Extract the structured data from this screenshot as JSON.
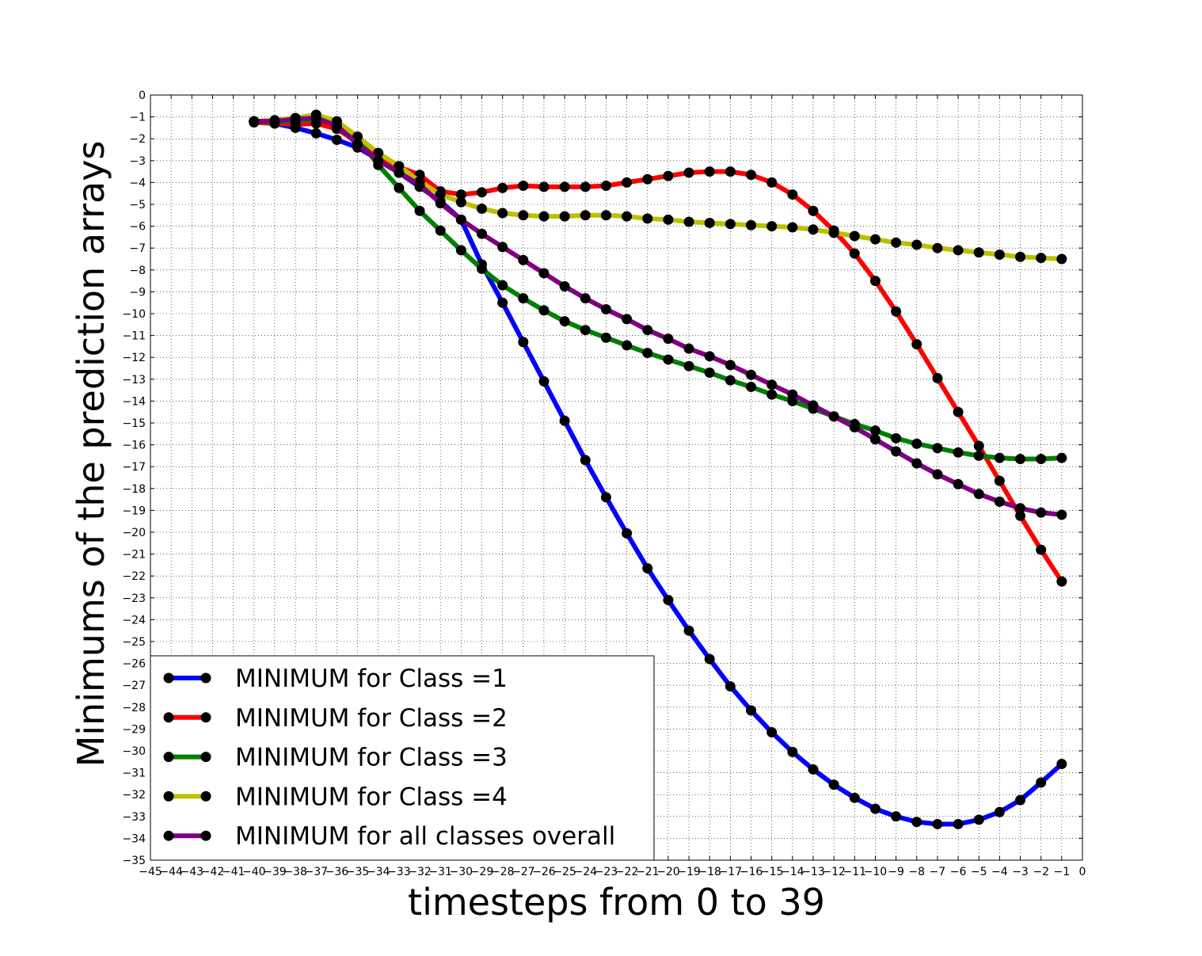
{
  "chart_data": {
    "type": "line",
    "title": "",
    "xlabel": "timesteps from 0 to 39",
    "ylabel": "Minimums of the prediction arrays",
    "xlim": [
      -45,
      0
    ],
    "ylim": [
      -35,
      0
    ],
    "x_ticks": [
      -45,
      -44,
      -43,
      -42,
      -41,
      -40,
      -39,
      -38,
      -37,
      -36,
      -35,
      -34,
      -33,
      -32,
      -31,
      -30,
      -29,
      -28,
      -27,
      -26,
      -25,
      -24,
      -23,
      -22,
      -21,
      -20,
      -19,
      -18,
      -17,
      -16,
      -15,
      -14,
      -13,
      -12,
      -11,
      -10,
      -9,
      -8,
      -7,
      -6,
      -5,
      -4,
      -3,
      -2,
      -1,
      0
    ],
    "y_ticks": [
      0,
      -1,
      -2,
      -3,
      -4,
      -5,
      -6,
      -7,
      -8,
      -9,
      -10,
      -11,
      -12,
      -13,
      -14,
      -15,
      -16,
      -17,
      -18,
      -19,
      -20,
      -21,
      -22,
      -23,
      -24,
      -25,
      -26,
      -27,
      -28,
      -29,
      -30,
      -31,
      -32,
      -33,
      -34,
      -35
    ],
    "grid": true,
    "legend_position": "lower-left",
    "marker_color": "#000000",
    "x": [
      -40,
      -39,
      -38,
      -37,
      -36,
      -35,
      -34,
      -33,
      -32,
      -31,
      -30,
      -29,
      -28,
      -27,
      -26,
      -25,
      -24,
      -23,
      -22,
      -21,
      -20,
      -19,
      -18,
      -17,
      -16,
      -15,
      -14,
      -13,
      -12,
      -11,
      -10,
      -9,
      -8,
      -7,
      -6,
      -5,
      -4,
      -3,
      -2,
      -1
    ],
    "series": [
      {
        "name": "MINIMUM for Class =1",
        "color": "#0000ff",
        "values": [
          -1.2,
          -1.3,
          -1.5,
          -1.75,
          -2.05,
          -2.4,
          -2.95,
          -3.55,
          -4.2,
          -4.85,
          -5.7,
          -7.75,
          -9.5,
          -11.3,
          -13.1,
          -14.9,
          -16.7,
          -18.4,
          -20.05,
          -21.65,
          -23.1,
          -24.5,
          -25.8,
          -27.05,
          -28.15,
          -29.15,
          -30.05,
          -30.85,
          -31.55,
          -32.15,
          -32.65,
          -33.0,
          -33.25,
          -33.35,
          -33.35,
          -33.15,
          -32.8,
          -32.25,
          -31.45,
          -30.6
        ]
      },
      {
        "name": "MINIMUM for Class =2",
        "color": "#ff0000",
        "values": [
          -1.25,
          -1.3,
          -1.35,
          -1.3,
          -1.55,
          -2.15,
          -2.8,
          -3.3,
          -3.65,
          -4.4,
          -4.55,
          -4.45,
          -4.25,
          -4.15,
          -4.2,
          -4.2,
          -4.2,
          -4.15,
          -4.0,
          -3.85,
          -3.7,
          -3.55,
          -3.5,
          -3.5,
          -3.65,
          -4.0,
          -4.55,
          -5.3,
          -6.2,
          -7.25,
          -8.5,
          -9.9,
          -11.4,
          -12.95,
          -14.5,
          -16.05,
          -17.65,
          -19.25,
          -20.8,
          -22.25
        ]
      },
      {
        "name": "MINIMUM for Class =3",
        "color": "#008000",
        "values": [
          -1.2,
          -1.25,
          -1.2,
          -1.1,
          -1.25,
          -2.0,
          -3.2,
          -4.25,
          -5.3,
          -6.2,
          -7.1,
          -7.95,
          -8.7,
          -9.3,
          -9.85,
          -10.35,
          -10.75,
          -11.1,
          -11.45,
          -11.8,
          -12.1,
          -12.4,
          -12.7,
          -13.05,
          -13.35,
          -13.7,
          -14.0,
          -14.35,
          -14.7,
          -15.05,
          -15.35,
          -15.7,
          -15.95,
          -16.15,
          -16.35,
          -16.5,
          -16.6,
          -16.65,
          -16.65,
          -16.6
        ]
      },
      {
        "name": "MINIMUM for Class =4",
        "color": "#bfbf00",
        "values": [
          -1.2,
          -1.15,
          -1.05,
          -0.9,
          -1.2,
          -1.9,
          -2.65,
          -3.25,
          -3.95,
          -4.55,
          -4.9,
          -5.2,
          -5.4,
          -5.5,
          -5.55,
          -5.55,
          -5.5,
          -5.5,
          -5.55,
          -5.65,
          -5.7,
          -5.8,
          -5.85,
          -5.9,
          -5.95,
          -6.0,
          -6.05,
          -6.15,
          -6.3,
          -6.45,
          -6.6,
          -6.75,
          -6.85,
          -7.0,
          -7.1,
          -7.2,
          -7.3,
          -7.4,
          -7.45,
          -7.5
        ]
      },
      {
        "name": "MINIMUM for all classes overall",
        "color": "#800080",
        "values": [
          -1.2,
          -1.2,
          -1.1,
          -1.05,
          -1.4,
          -2.25,
          -3.0,
          -3.55,
          -4.1,
          -4.95,
          -5.7,
          -6.35,
          -6.95,
          -7.55,
          -8.15,
          -8.75,
          -9.3,
          -9.8,
          -10.25,
          -10.75,
          -11.15,
          -11.6,
          -11.95,
          -12.35,
          -12.8,
          -13.25,
          -13.7,
          -14.2,
          -14.7,
          -15.2,
          -15.75,
          -16.3,
          -16.85,
          -17.35,
          -17.8,
          -18.25,
          -18.6,
          -18.9,
          -19.1,
          -19.2
        ]
      }
    ]
  }
}
